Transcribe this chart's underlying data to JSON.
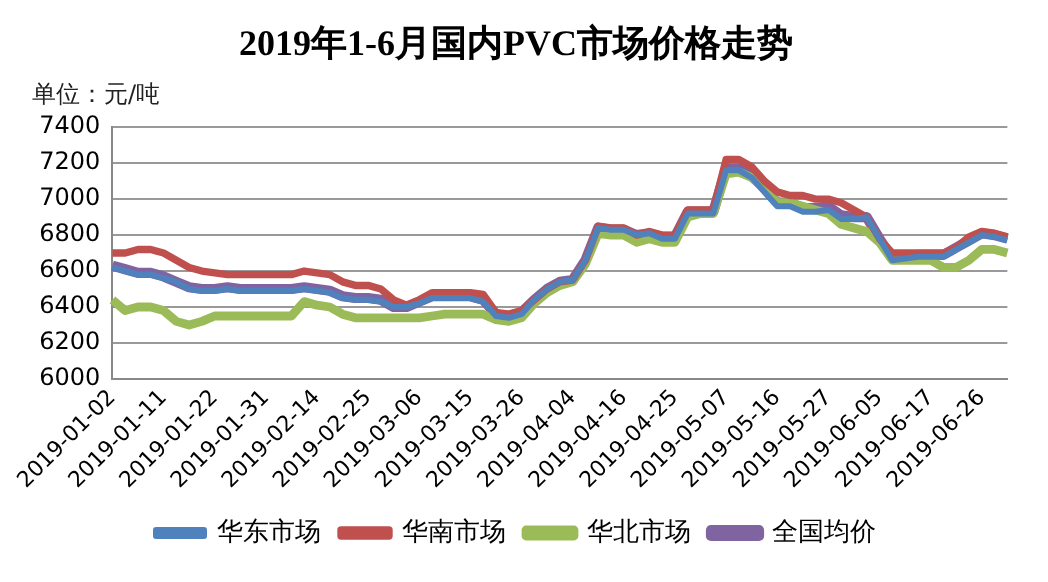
{
  "chart_data": {
    "type": "line",
    "title": "2019年1-6月国内PVC市场价格走势",
    "ylabel": "单位：元/吨",
    "categories": [
      "2019-01-02",
      null,
      null,
      null,
      "2019-01-11",
      null,
      null,
      null,
      "2019-01-22",
      null,
      null,
      null,
      "2019-01-31",
      null,
      null,
      null,
      "2019-02-14",
      null,
      null,
      null,
      "2019-02-25",
      null,
      null,
      null,
      "2019-03-06",
      null,
      null,
      null,
      "2019-03-15",
      null,
      null,
      null,
      "2019-03-26",
      null,
      null,
      null,
      "2019-04-04",
      null,
      null,
      null,
      "2019-04-16",
      null,
      null,
      null,
      "2019-04-25",
      null,
      null,
      null,
      "2019-05-07",
      null,
      null,
      null,
      "2019-05-16",
      null,
      null,
      null,
      "2019-05-27",
      null,
      null,
      null,
      "2019-06-05",
      null,
      null,
      null,
      "2019-06-17",
      null,
      null,
      null,
      "2019-06-26",
      null,
      null
    ],
    "series": [
      {
        "name": "华东市场",
        "color": "#4f81bd",
        "values": [
          6620,
          6600,
          6580,
          6580,
          6560,
          6540,
          6500,
          6490,
          6490,
          6500,
          6490,
          6490,
          6490,
          6490,
          6490,
          6500,
          6490,
          6480,
          6450,
          6440,
          6440,
          6430,
          6400,
          6400,
          6420,
          6450,
          6450,
          6450,
          6450,
          6430,
          6350,
          6340,
          6360,
          6440,
          6500,
          6540,
          6550,
          6660,
          6840,
          6830,
          6830,
          6800,
          6810,
          6780,
          6780,
          6920,
          6920,
          6920,
          7160,
          7160,
          7120,
          7040,
          6960,
          6960,
          6930,
          6930,
          6940,
          6890,
          6890,
          6900,
          6780,
          6660,
          6670,
          6680,
          6680,
          6680,
          6720,
          6760,
          6800,
          6790,
          6770
        ]
      },
      {
        "name": "华南市场",
        "color": "#c0504d",
        "values": [
          6700,
          6700,
          6720,
          6720,
          6700,
          6660,
          6620,
          6600,
          6590,
          6580,
          6580,
          6580,
          6580,
          6580,
          6580,
          6600,
          6590,
          6580,
          6540,
          6520,
          6520,
          6500,
          6440,
          6410,
          6440,
          6480,
          6480,
          6480,
          6480,
          6470,
          6370,
          6360,
          6380,
          6440,
          6500,
          6540,
          6550,
          6660,
          6850,
          6840,
          6840,
          6800,
          6820,
          6800,
          6800,
          6940,
          6940,
          6940,
          7220,
          7220,
          7180,
          7100,
          7040,
          7020,
          7020,
          7000,
          7000,
          6980,
          6940,
          6900,
          6780,
          6700,
          6700,
          6700,
          6700,
          6700,
          6730,
          6790,
          6820,
          6810,
          6790
        ]
      },
      {
        "name": "华北市场",
        "color": "#9bbb59",
        "values": [
          6440,
          6380,
          6400,
          6400,
          6380,
          6320,
          6300,
          6320,
          6350,
          6350,
          6350,
          6350,
          6350,
          6350,
          6350,
          6430,
          6410,
          6400,
          6360,
          6340,
          6340,
          6340,
          6340,
          6340,
          6340,
          6350,
          6360,
          6360,
          6360,
          6360,
          6330,
          6320,
          6340,
          6420,
          6480,
          6520,
          6540,
          6640,
          6810,
          6800,
          6800,
          6760,
          6780,
          6760,
          6760,
          6900,
          6920,
          6920,
          7140,
          7150,
          7120,
          7060,
          6980,
          6980,
          6960,
          6940,
          6920,
          6860,
          6840,
          6820,
          6760,
          6660,
          6660,
          6660,
          6660,
          6620,
          6620,
          6660,
          6720,
          6720,
          6700
        ]
      },
      {
        "name": "全国均价",
        "color": "#8064a2",
        "values": [
          6630,
          6610,
          6590,
          6590,
          6570,
          6540,
          6510,
          6500,
          6500,
          6510,
          6500,
          6500,
          6500,
          6500,
          6500,
          6510,
          6500,
          6490,
          6460,
          6450,
          6450,
          6440,
          6400,
          6400,
          6430,
          6460,
          6460,
          6460,
          6460,
          6440,
          6360,
          6350,
          6370,
          6440,
          6500,
          6540,
          6550,
          6660,
          6840,
          6830,
          6830,
          6800,
          6810,
          6790,
          6790,
          6930,
          6930,
          6930,
          7170,
          7170,
          7130,
          7060,
          6980,
          6980,
          6950,
          6950,
          6960,
          6910,
          6900,
          6900,
          6780,
          6670,
          6680,
          6690,
          6690,
          6690,
          6730,
          6770,
          6810,
          6800,
          6780
        ]
      }
    ],
    "ylim": [
      6000,
      7400
    ],
    "yticks": [
      6000,
      6200,
      6400,
      6600,
      6800,
      7000,
      7200,
      7400
    ],
    "grid": "y",
    "legend": "bottom",
    "marker": "none",
    "line_style": "solid"
  }
}
